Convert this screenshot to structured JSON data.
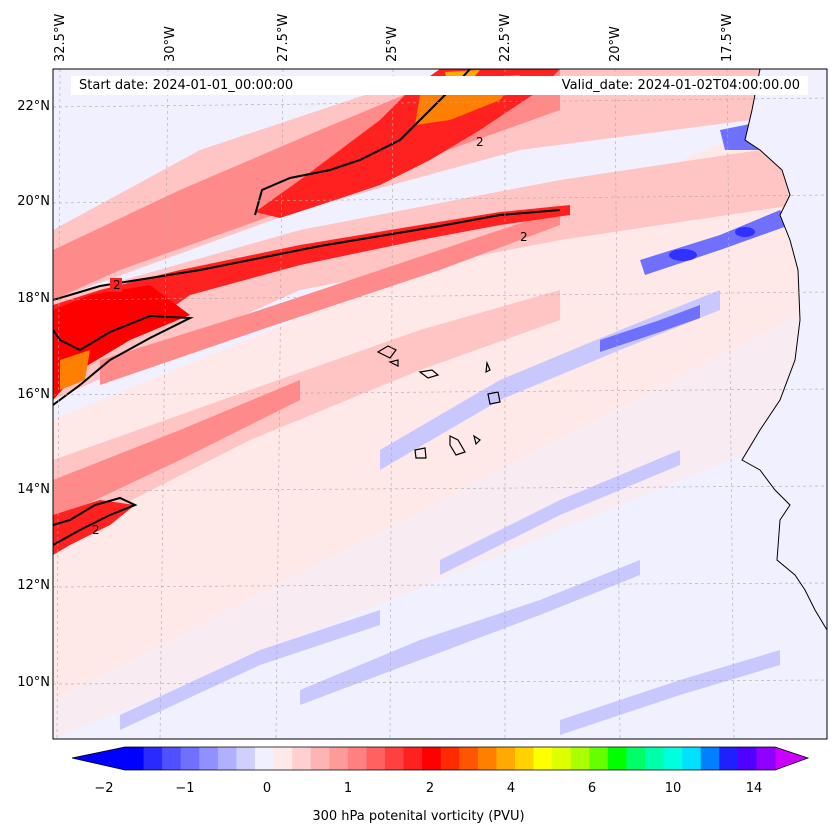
{
  "banner": {
    "start_date": "Start date: 2024-01-01_00:00:00",
    "valid_date": "Valid_date: 2024-01-02T04:00:00.00"
  },
  "axes": {
    "longitude_labels": [
      "32.5°W",
      "30°W",
      "27.5°W",
      "25°W",
      "22.5°W",
      "20°W",
      "17.5°W"
    ],
    "latitude_labels": [
      "22°N",
      "20°N",
      "18°N",
      "16°N",
      "14°N",
      "12°N",
      "10°N"
    ]
  },
  "contour_labels": [
    "2",
    "2",
    "2",
    "2"
  ],
  "colorbar": {
    "label": "300 hPa potenital vorticity (PVU)",
    "ticks": [
      "−2",
      "−1",
      "0",
      "1",
      "2",
      "4",
      "6",
      "10",
      "14"
    ],
    "colors": [
      "#0000ff",
      "#2a2aff",
      "#5050ff",
      "#7070ff",
      "#9090ff",
      "#b0b0ff",
      "#d0d0ff",
      "#f0f0ff",
      "#ffe8e8",
      "#ffd0d0",
      "#ffb4b4",
      "#ff9a9a",
      "#ff8080",
      "#ff6060",
      "#ff4040",
      "#ff2020",
      "#ff0000",
      "#ff2a00",
      "#ff5500",
      "#ff8000",
      "#ffaa00",
      "#ffd200",
      "#ffff00",
      "#ddff00",
      "#aaff00",
      "#66ff00",
      "#00ff00",
      "#00ff66",
      "#00ffaa",
      "#00ffdd",
      "#00e0ff",
      "#0080ff",
      "#2020ff",
      "#5000ff",
      "#9000ff"
    ],
    "extend_low": "#0000ff",
    "extend_high": "#cc00ff"
  },
  "colors": {
    "ocean_base": "#f0f0ff",
    "coast": "#000000",
    "contour": "#000000"
  }
}
